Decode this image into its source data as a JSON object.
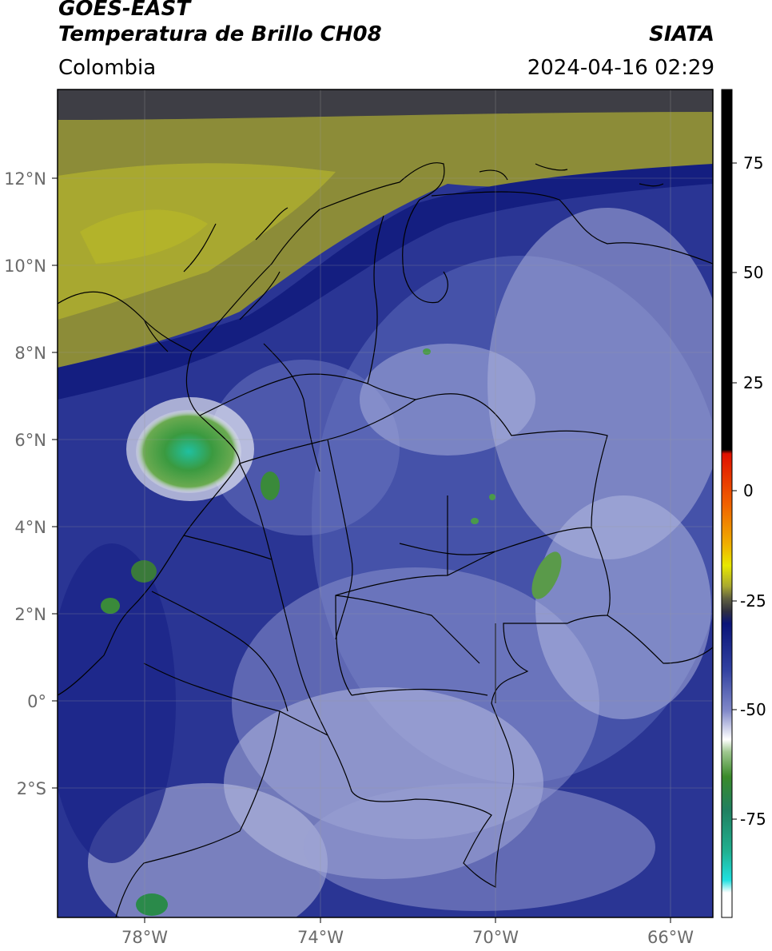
{
  "header": {
    "satellite": "GOES-EAST",
    "product": "Temperatura de Brillo CH08",
    "region": "Colombia",
    "source": "SIATA",
    "datetime": "2024-04-16 02:29"
  },
  "map": {
    "lat_ticks": [
      "12°N",
      "10°N",
      "8°N",
      "6°N",
      "4°N",
      "2°N",
      "0°",
      "2°S"
    ],
    "lon_ticks": [
      "78°W",
      "74°W",
      "70°W",
      "66°W"
    ],
    "extent": {
      "lon_min": -80,
      "lon_max": -65,
      "lat_min": -5,
      "lat_max": 14
    },
    "grid": true
  },
  "colorbar": {
    "ticks": [
      "75",
      "50",
      "25",
      "0",
      "-25",
      "-50",
      "-75"
    ],
    "range": [
      -95,
      90
    ],
    "colors": {
      "black": "#000000",
      "red": "#e01000",
      "orange": "#f08000",
      "yellow": "#e8e000",
      "olive": "#a8a830",
      "dark_olive": "#4a4a30",
      "navy": "#101880",
      "blue": "#3848a8",
      "lavender": "#a0a8d8",
      "white": "#ffffff",
      "green": "#3a8a3a",
      "teal": "#20a878",
      "cyan": "#20e0e0"
    }
  }
}
